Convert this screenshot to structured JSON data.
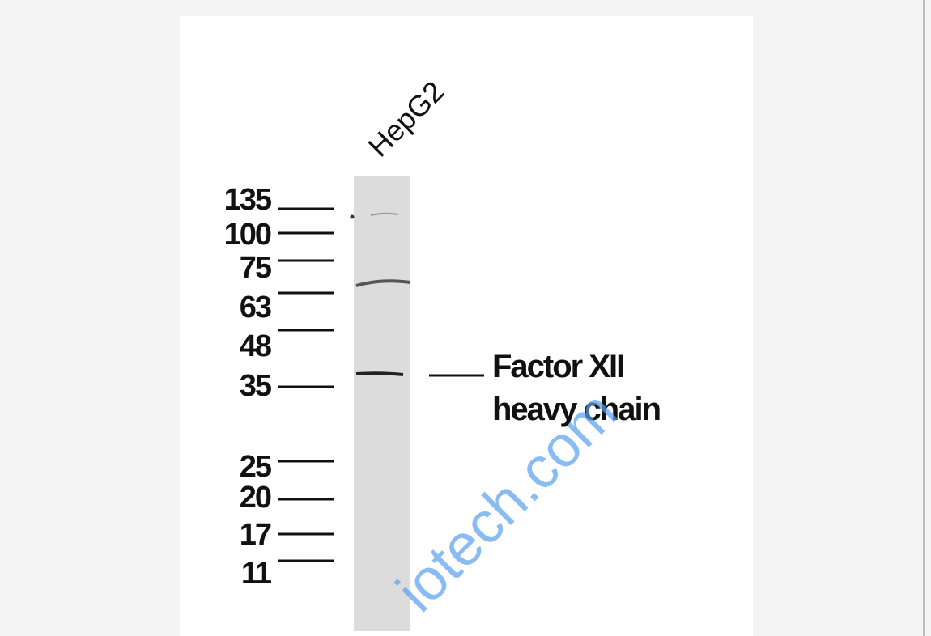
{
  "blot": {
    "lane_label": "HepG2",
    "markers": [
      "135",
      "100",
      "75",
      "63",
      "48",
      "35",
      "25",
      "20",
      "17",
      "11"
    ],
    "band_label": [
      "Factor XII",
      "heavy chain"
    ],
    "watermark": "iotech.com"
  }
}
